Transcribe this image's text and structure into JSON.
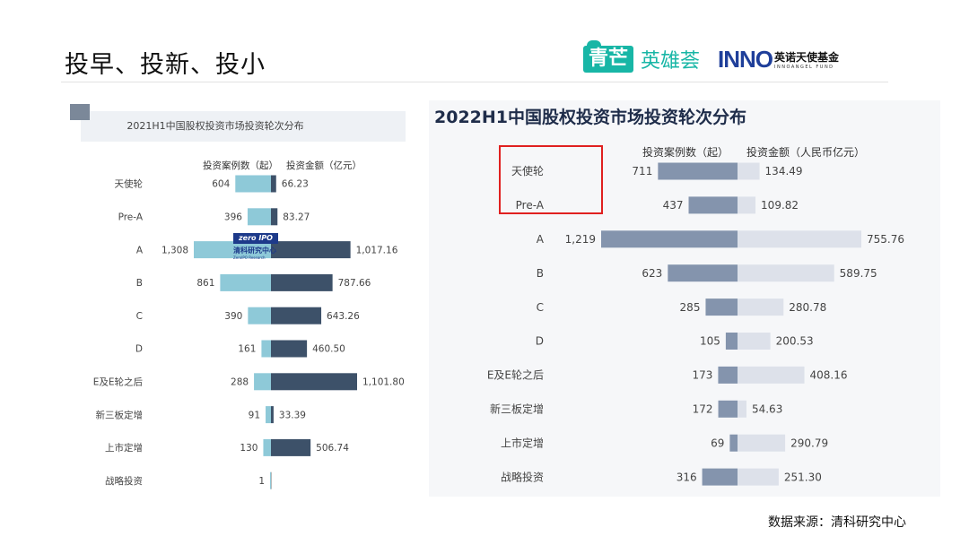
{
  "page": {
    "title": "投早、投新、投小",
    "source": "数据来源：清科研究中心"
  },
  "logos": {
    "qingmang": "青芒",
    "yingxionghui": "英雄荟",
    "inno_mark": "INNO",
    "inno_cn": "英诺天使基金",
    "inno_en": "INNOANGEL FUND"
  },
  "watermark": {
    "badge": "zero IPO",
    "cn": "清科研究中心",
    "en": "ZeroIPO Research"
  },
  "chart_data": [
    {
      "type": "bar",
      "orientation": "horizontal-butterfly",
      "title": "2021H1中国股权投资市场投资轮次分布",
      "left_series_label": "投资案例数（起）",
      "right_series_label": "投资金额（亿元）",
      "categories": [
        "天使轮",
        "Pre-A",
        "A",
        "B",
        "C",
        "D",
        "E及E轮之后",
        "新三板定增",
        "上市定增",
        "战略投资"
      ],
      "series": [
        {
          "name": "投资案例数（起）",
          "values": [
            604,
            396,
            1308,
            861,
            390,
            161,
            288,
            91,
            130,
            1
          ],
          "labels": [
            "604",
            "396",
            "1,308",
            "861",
            "390",
            "161",
            "288",
            "91",
            "130",
            "1"
          ],
          "color": "#8ec9d8"
        },
        {
          "name": "投资金额（亿元）",
          "values": [
            66.23,
            83.27,
            1017.16,
            787.66,
            643.26,
            460.5,
            1101.8,
            33.39,
            506.74,
            null
          ],
          "labels": [
            "66.23",
            "83.27",
            "1,017.16",
            "787.66",
            "643.26",
            "460.50",
            "1,101.80",
            "33.39",
            "506.74",
            ""
          ],
          "color": "#3d5169"
        }
      ]
    },
    {
      "type": "bar",
      "orientation": "horizontal-butterfly",
      "title": "2022H1中国股权投资市场投资轮次分布",
      "left_series_label": "投资案例数（起）",
      "right_series_label": "投资金额（人民币亿元）",
      "categories": [
        "天使轮",
        "Pre-A",
        "A",
        "B",
        "C",
        "D",
        "E及E轮之后",
        "新三板定增",
        "上市定增",
        "战略投资"
      ],
      "series": [
        {
          "name": "投资案例数（起）",
          "values": [
            711,
            437,
            1219,
            623,
            285,
            105,
            173,
            172,
            69,
            316
          ],
          "labels": [
            "711",
            "437",
            "1,219",
            "623",
            "285",
            "105",
            "173",
            "172",
            "69",
            "316"
          ],
          "color": "#8494ad"
        },
        {
          "name": "投资金额（人民币亿元）",
          "values": [
            134.49,
            109.82,
            755.76,
            589.75,
            280.78,
            200.53,
            408.16,
            54.63,
            290.79,
            251.3
          ],
          "labels": [
            "134.49",
            "109.82",
            "755.76",
            "589.75",
            "280.78",
            "200.53",
            "408.16",
            "54.63",
            "290.79",
            "251.30"
          ],
          "color": "#dde1ea"
        }
      ]
    }
  ]
}
